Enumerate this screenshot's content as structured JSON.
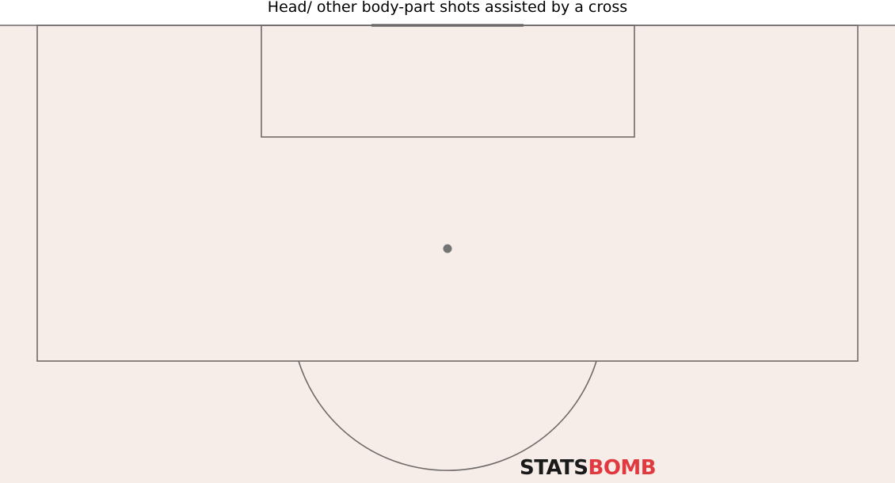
{
  "title": "Head/ other body-part shots assisted by a cross",
  "logo": {
    "text_dark": "STATS",
    "text_red": "BOMB",
    "brand_color": "#e03a40",
    "dark_color": "#1a1a1a"
  },
  "colors": {
    "pitch": "#f6ede9",
    "lines": "#6f6a6a",
    "spot": "#747474"
  }
}
